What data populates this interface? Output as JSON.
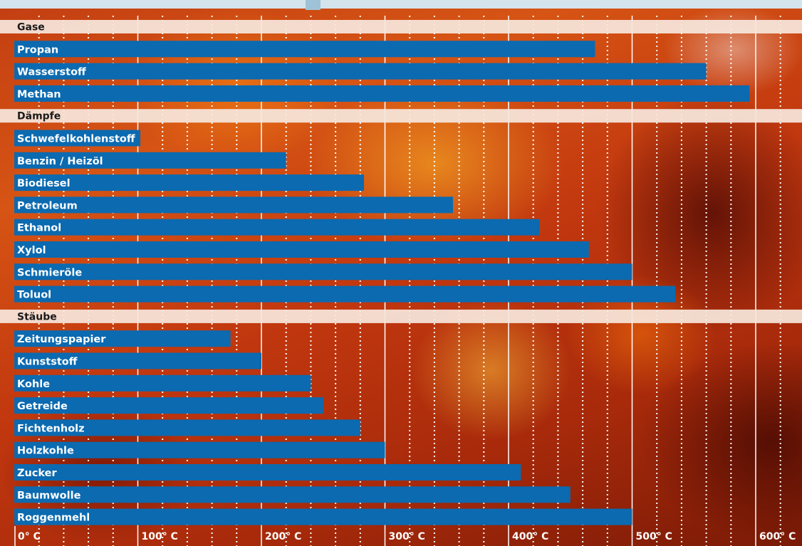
{
  "chart_data": {
    "type": "bar",
    "orientation": "horizontal",
    "unit": "° C",
    "xlim": [
      0,
      625
    ],
    "x_ticks": [
      {
        "value": 0,
        "label": "0° C"
      },
      {
        "value": 100,
        "label": "100° C"
      },
      {
        "value": 200,
        "label": "200° C"
      },
      {
        "value": 300,
        "label": "300° C"
      },
      {
        "value": 400,
        "label": "400° C"
      },
      {
        "value": 500,
        "label": "500° C"
      },
      {
        "value": 600,
        "label": "600° C"
      }
    ],
    "grid": "major solid lines every 100, dotted lines every 20",
    "groups": [
      {
        "name": "Gase",
        "items": [
          {
            "label": "Propan",
            "value": 470
          },
          {
            "label": "Wasserstoff",
            "value": 560
          },
          {
            "label": "Methan",
            "value": 595
          }
        ]
      },
      {
        "name": "Dämpfe",
        "items": [
          {
            "label": "Schwefelkohlenstoff",
            "value": 102
          },
          {
            "label": "Benzin / Heizöl",
            "value": 220
          },
          {
            "label": "Biodiesel",
            "value": 283
          },
          {
            "label": "Petroleum",
            "value": 355
          },
          {
            "label": "Ethanol",
            "value": 425
          },
          {
            "label": "Xylol",
            "value": 465
          },
          {
            "label": "Schmieröle",
            "value": 500
          },
          {
            "label": "Toluol",
            "value": 535
          }
        ]
      },
      {
        "name": "Stäube",
        "items": [
          {
            "label": "Zeitungspapier",
            "value": 175
          },
          {
            "label": "Kunststoff",
            "value": 200
          },
          {
            "label": "Kohle",
            "value": 240
          },
          {
            "label": "Getreide",
            "value": 250
          },
          {
            "label": "Fichtenholz",
            "value": 280
          },
          {
            "label": "Holzkohle",
            "value": 300
          },
          {
            "label": "Zucker",
            "value": 410
          },
          {
            "label": "Baumwolle",
            "value": 450
          },
          {
            "label": "Roggenmehl",
            "value": 500
          }
        ]
      }
    ],
    "colors": {
      "bar": "#0b6ab0",
      "category_band": "#f6e6dc",
      "grid": "#ffffff"
    }
  }
}
